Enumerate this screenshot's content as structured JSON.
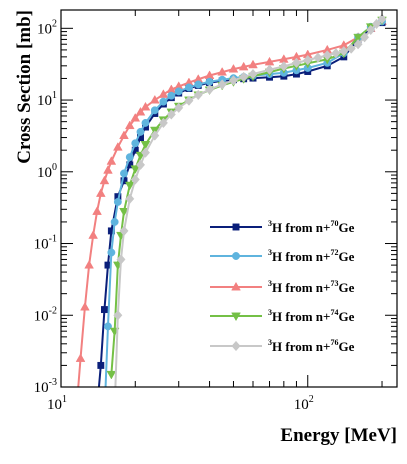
{
  "chart_data": {
    "type": "line",
    "title": "",
    "xlabel": "Energy [MeV]",
    "ylabel": "Cross Section [mb]",
    "x_scale": "log",
    "y_scale": "log",
    "xlim": [
      10,
      230
    ],
    "ylim": [
      0.001,
      180
    ],
    "x_tick_labels": [
      {
        "value": 10,
        "base": "10",
        "exp": "1"
      },
      {
        "value": 100,
        "base": "10",
        "exp": "2"
      }
    ],
    "y_tick_labels": [
      {
        "value": 0.001,
        "base": "10",
        "exp": "-3"
      },
      {
        "value": 0.01,
        "base": "10",
        "exp": "-2"
      },
      {
        "value": 0.1,
        "base": "10",
        "exp": "-1"
      },
      {
        "value": 1,
        "base": "10",
        "exp": "0"
      },
      {
        "value": 10,
        "base": "10",
        "exp": "1"
      },
      {
        "value": 100,
        "base": "10",
        "exp": "2"
      }
    ],
    "grid": false,
    "legend_position": "right",
    "series": [
      {
        "name": "3H from n+70Ge",
        "label": {
          "pre": "3",
          "main1": "H from n+",
          "sup2": "70",
          "main2": "Ge"
        },
        "color": "#0a1f7a",
        "marker": "square",
        "x": [
          14.0,
          14.5,
          15.0,
          15.5,
          16.0,
          17.0,
          18.0,
          19.0,
          20.0,
          21.0,
          22.0,
          24.0,
          26.0,
          28.0,
          30.0,
          33.0,
          36.0,
          40.0,
          45.0,
          50.0,
          55.0,
          60.0,
          70.0,
          80.0,
          90.0,
          100.0,
          120.0,
          140.0,
          160.0,
          180.0,
          200.0
        ],
        "y": [
          0.0005,
          0.002,
          0.012,
          0.05,
          0.15,
          0.45,
          0.75,
          1.25,
          2.0,
          3.0,
          4.2,
          6.5,
          8.8,
          10.8,
          12.5,
          14.5,
          16.0,
          17.5,
          18.5,
          19.2,
          19.8,
          20.2,
          20.8,
          21.5,
          23.0,
          25.0,
          30.0,
          40.0,
          70.0,
          100.0,
          120.0
        ]
      },
      {
        "name": "3H from n+72Ge",
        "label": {
          "pre": "3",
          "main1": "H from n+",
          "sup2": "72",
          "main2": "Ge"
        },
        "color": "#5fb4de",
        "marker": "circle",
        "x": [
          15.0,
          15.5,
          16.0,
          16.5,
          17.0,
          18.0,
          19.0,
          20.0,
          21.0,
          22.0,
          24.0,
          26.0,
          28.0,
          30.0,
          33.0,
          36.0,
          40.0,
          45.0,
          50.0,
          55.0,
          60.0,
          70.0,
          80.0,
          90.0,
          100.0,
          120.0,
          140.0,
          160.0,
          180.0,
          200.0
        ],
        "y": [
          0.0004,
          0.007,
          0.075,
          0.2,
          0.38,
          0.95,
          1.6,
          2.5,
          3.6,
          4.8,
          7.2,
          9.5,
          11.5,
          13.2,
          15.0,
          16.5,
          18.0,
          19.2,
          20.2,
          21.0,
          21.8,
          23.0,
          24.0,
          26.0,
          28.0,
          33.0,
          45.0,
          75.0,
          105.0,
          125.0
        ]
      },
      {
        "name": "3H from n+73Ge",
        "label": {
          "pre": "3",
          "main1": "H from n+",
          "sup2": "73",
          "main2": "Ge"
        },
        "color": "#f28080",
        "marker": "triangle-up",
        "x": [
          11.5,
          12.0,
          12.5,
          13.0,
          13.5,
          14.0,
          14.5,
          15.0,
          15.5,
          16.0,
          17.0,
          18.0,
          19.0,
          20.0,
          21.0,
          22.0,
          24.0,
          26.0,
          28.0,
          30.0,
          33.0,
          36.0,
          40.0,
          45.0,
          50.0,
          55.0,
          60.0,
          70.0,
          80.0,
          90.0,
          100.0,
          120.0,
          140.0,
          160.0,
          180.0,
          200.0
        ],
        "y": [
          0.0004,
          0.0025,
          0.013,
          0.05,
          0.13,
          0.28,
          0.5,
          0.75,
          1.05,
          1.4,
          2.2,
          3.2,
          4.4,
          5.6,
          6.8,
          8.0,
          10.0,
          12.0,
          14.0,
          15.5,
          17.5,
          19.5,
          22.0,
          24.5,
          27.0,
          29.0,
          31.0,
          34.0,
          37.0,
          40.0,
          43.0,
          50.0,
          58.0,
          75.0,
          100.0,
          125.0
        ]
      },
      {
        "name": "3H from n+74Ge",
        "label": {
          "pre": "3",
          "main1": "H from n+",
          "sup2": "74",
          "main2": "Ge"
        },
        "color": "#74c046",
        "marker": "triangle-down",
        "x": [
          16.0,
          16.5,
          17.0,
          17.5,
          18.0,
          19.0,
          20.0,
          21.0,
          22.0,
          24.0,
          26.0,
          28.0,
          30.0,
          33.0,
          36.0,
          40.0,
          45.0,
          50.0,
          55.0,
          60.0,
          70.0,
          80.0,
          90.0,
          100.0,
          120.0,
          140.0,
          160.0,
          180.0,
          200.0
        ],
        "y": [
          0.0015,
          0.006,
          0.05,
          0.13,
          0.28,
          0.65,
          1.1,
          1.7,
          2.4,
          3.8,
          5.3,
          6.8,
          8.2,
          10.0,
          11.8,
          13.8,
          16.0,
          18.0,
          19.8,
          21.5,
          24.5,
          27.5,
          30.0,
          32.5,
          37.0,
          45.0,
          75.0,
          105.0,
          130.0
        ]
      },
      {
        "name": "3H from n+76Ge",
        "label": {
          "pre": "3",
          "main1": "H from n+",
          "sup2": "76",
          "main2": "Ge"
        },
        "color": "#c8c8c8",
        "marker": "diamond",
        "x": [
          16.5,
          17.0,
          17.5,
          18.0,
          19.0,
          20.0,
          21.0,
          22.0,
          24.0,
          26.0,
          28.0,
          30.0,
          33.0,
          36.0,
          40.0,
          45.0,
          50.0,
          55.0,
          60.0,
          70.0,
          80.0,
          90.0,
          100.0,
          110.0,
          120.0,
          130.0,
          140.0,
          150.0,
          160.0,
          170.0,
          180.0,
          190.0,
          200.0
        ],
        "y": [
          0.0005,
          0.01,
          0.06,
          0.15,
          0.42,
          0.78,
          1.25,
          1.85,
          3.2,
          4.8,
          6.3,
          7.8,
          9.8,
          11.8,
          14.0,
          16.5,
          18.8,
          21.0,
          23.0,
          26.5,
          29.5,
          33.0,
          36.0,
          39.0,
          42.0,
          45.0,
          48.0,
          52.0,
          60.0,
          75.0,
          95.0,
          115.0,
          135.0
        ]
      }
    ]
  }
}
